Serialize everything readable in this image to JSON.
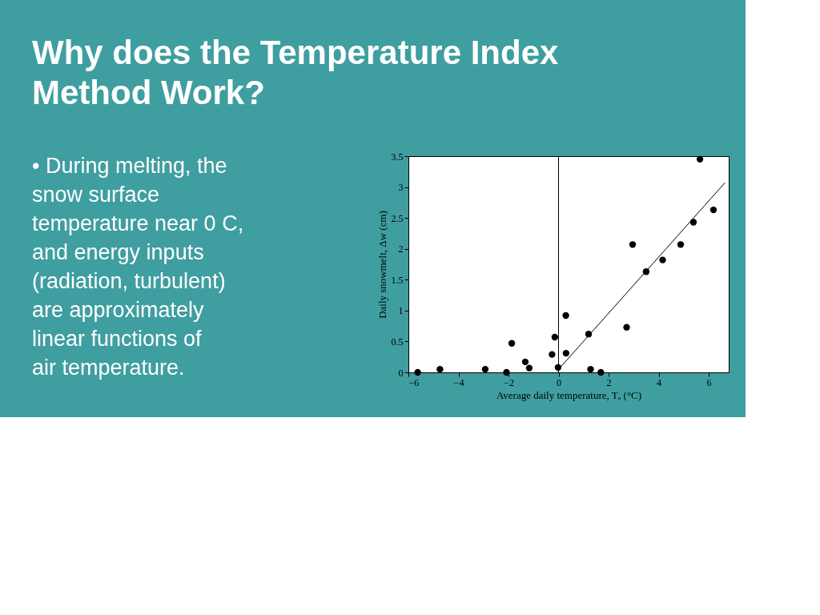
{
  "chart_data": {
    "type": "scatter",
    "title": "Why does the Temperature Index Method Work?",
    "xlabel": "Average daily temperature, Tₐ (°C)",
    "ylabel": "Daily snowmelt, Δw (cm)",
    "annotations": [
      "• During melting, the snow surface temperature near 0 C, and energy inputs (radiation, turbulent) are approximately linear functions of air temperature."
    ],
    "xlim": [
      -6,
      6.8
    ],
    "ylim": [
      0,
      3.5
    ],
    "xticks": [
      -6,
      -4,
      -2,
      0,
      2,
      4,
      6
    ],
    "yticks": [
      0,
      0.5,
      1,
      1.5,
      2,
      2.5,
      3,
      3.5
    ],
    "grid": false,
    "marker": "circle",
    "ref_lines": [
      {
        "axis": "x",
        "value": 0,
        "color": "#000000",
        "line_style": "solid"
      }
    ],
    "series": [
      {
        "color": "#000000",
        "x": [
          -5.63,
          -4.74,
          -2.93,
          -2.08,
          -1.87,
          -1.33,
          -1.17,
          -0.26,
          -0.15,
          -0.02,
          0.29,
          0.3,
          1.2,
          1.28,
          1.69,
          2.72,
          2.96,
          3.5,
          4.16,
          4.88,
          5.39,
          5.65,
          6.19
        ],
        "values": [
          0,
          0.05,
          0.05,
          0,
          0.47,
          0.17,
          0.07,
          0.29,
          0.57,
          0.08,
          0.92,
          0.31,
          0.62,
          0.05,
          0,
          0.73,
          2.07,
          1.63,
          1.82,
          2.07,
          2.43,
          3.45,
          2.63
        ]
      },
      {
        "type": "line",
        "color": "#000000",
        "x": [
          0.09,
          6.65
        ],
        "values": [
          0.09,
          3.07
        ],
        "line_style": "solid",
        "marker": "none"
      }
    ]
  }
}
